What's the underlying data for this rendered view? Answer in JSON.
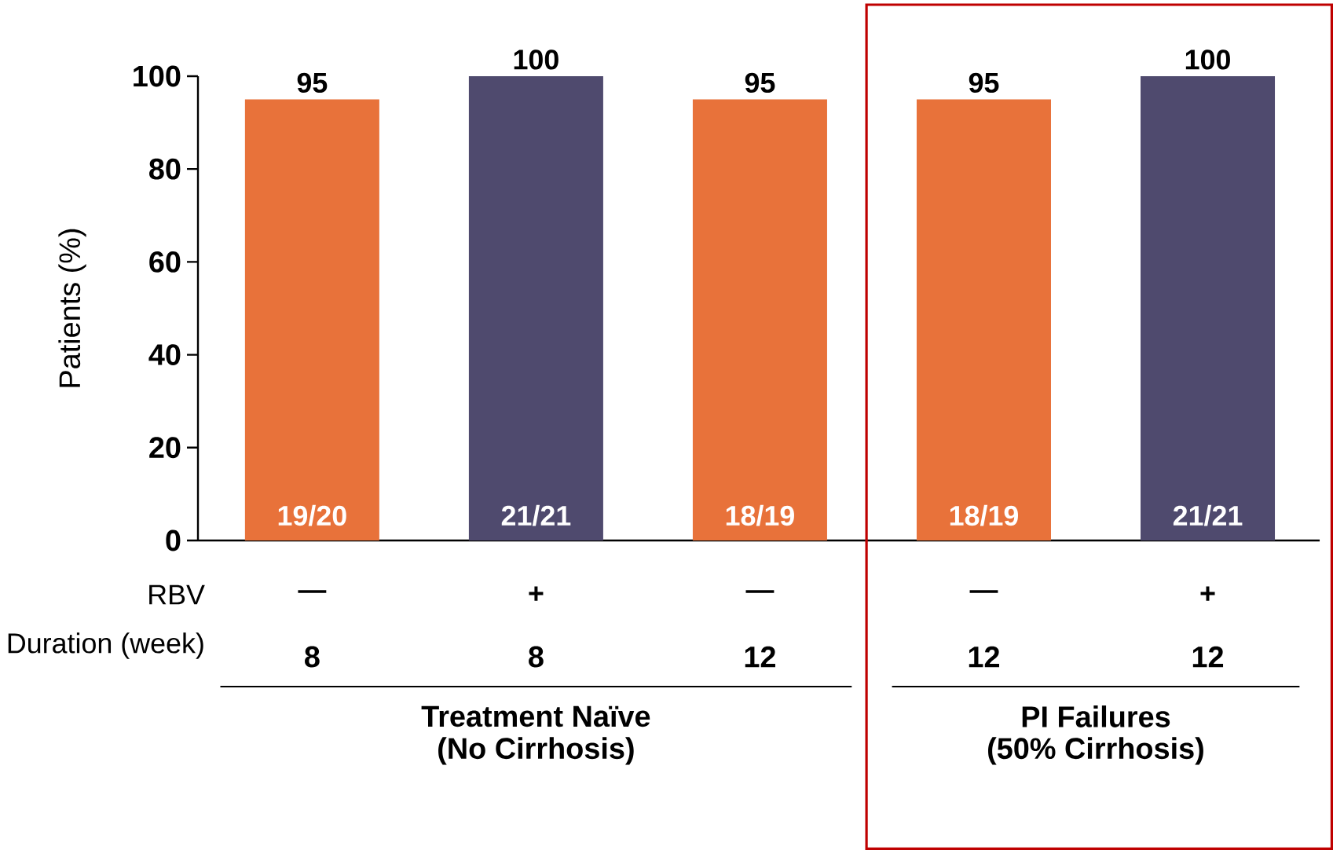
{
  "chart_data": {
    "type": "bar",
    "categories": [
      "8",
      "8",
      "12",
      "12",
      "12"
    ],
    "values": [
      95,
      100,
      95,
      95,
      100
    ],
    "colors": [
      "#e8723a",
      "#4f4a6e",
      "#e8723a",
      "#e8723a",
      "#4f4a6e"
    ],
    "ylim": [
      0,
      100
    ],
    "yticks": [
      0,
      20,
      40,
      60,
      80,
      100
    ],
    "ylabel": "Patients (%)",
    "xlabel": "Duration (week)",
    "data_labels": true,
    "annotations": [
      "RBV",
      "—",
      "+",
      "—",
      "—",
      "+",
      "19/20",
      "21/21",
      "18/19",
      "18/19",
      "21/21",
      "Treatment Naïve",
      "(No Cirrhosis)",
      "PI Failures",
      "(50% Cirrhosis)"
    ]
  }
}
